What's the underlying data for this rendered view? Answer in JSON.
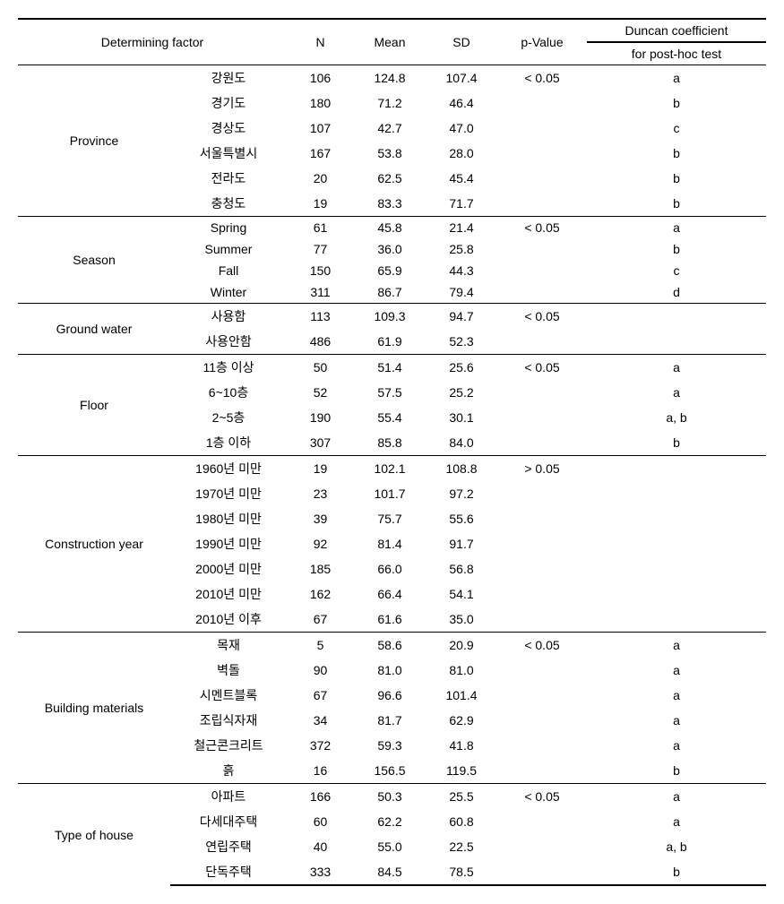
{
  "table": {
    "headers": {
      "factor": "Determining factor",
      "n": "N",
      "mean": "Mean",
      "sd": "SD",
      "pvalue": "p-Value",
      "duncan_l1": "Duncan coefficient",
      "duncan_l2": "for post-hoc test"
    },
    "sections": [
      {
        "label": "Province",
        "pvalue": "< 0.05",
        "rows": [
          {
            "cat": "강원도",
            "n": "106",
            "mean": "124.8",
            "sd": "107.4",
            "dun": "a"
          },
          {
            "cat": "경기도",
            "n": "180",
            "mean": "71.2",
            "sd": "46.4",
            "dun": "b"
          },
          {
            "cat": "경상도",
            "n": "107",
            "mean": "42.7",
            "sd": "47.0",
            "dun": "c"
          },
          {
            "cat": "서울특별시",
            "n": "167",
            "mean": "53.8",
            "sd": "28.0",
            "dun": "b"
          },
          {
            "cat": "전라도",
            "n": "20",
            "mean": "62.5",
            "sd": "45.4",
            "dun": "b"
          },
          {
            "cat": "충청도",
            "n": "19",
            "mean": "83.3",
            "sd": "71.7",
            "dun": "b"
          }
        ]
      },
      {
        "label": "Season",
        "pvalue": "< 0.05",
        "rows": [
          {
            "cat": "Spring",
            "n": "61",
            "mean": "45.8",
            "sd": "21.4",
            "dun": "a"
          },
          {
            "cat": "Summer",
            "n": "77",
            "mean": "36.0",
            "sd": "25.8",
            "dun": "b"
          },
          {
            "cat": "Fall",
            "n": "150",
            "mean": "65.9",
            "sd": "44.3",
            "dun": "c"
          },
          {
            "cat": "Winter",
            "n": "311",
            "mean": "86.7",
            "sd": "79.4",
            "dun": "d"
          }
        ]
      },
      {
        "label": "Ground water",
        "pvalue": "< 0.05",
        "rows": [
          {
            "cat": "사용함",
            "n": "113",
            "mean": "109.3",
            "sd": "94.7",
            "dun": ""
          },
          {
            "cat": "사용안함",
            "n": "486",
            "mean": "61.9",
            "sd": "52.3",
            "dun": ""
          }
        ]
      },
      {
        "label": "Floor",
        "pvalue": "< 0.05",
        "rows": [
          {
            "cat": "11층 이상",
            "n": "50",
            "mean": "51.4",
            "sd": "25.6",
            "dun": "a"
          },
          {
            "cat": "6~10층",
            "n": "52",
            "mean": "57.5",
            "sd": "25.2",
            "dun": "a"
          },
          {
            "cat": "2~5층",
            "n": "190",
            "mean": "55.4",
            "sd": "30.1",
            "dun": "a, b"
          },
          {
            "cat": "1층 이하",
            "n": "307",
            "mean": "85.8",
            "sd": "84.0",
            "dun": "b"
          }
        ]
      },
      {
        "label": "Construction year",
        "pvalue": "> 0.05",
        "rows": [
          {
            "cat": "1960년 미만",
            "n": "19",
            "mean": "102.1",
            "sd": "108.8",
            "dun": ""
          },
          {
            "cat": "1970년 미만",
            "n": "23",
            "mean": "101.7",
            "sd": "97.2",
            "dun": ""
          },
          {
            "cat": "1980년 미만",
            "n": "39",
            "mean": "75.7",
            "sd": "55.6",
            "dun": ""
          },
          {
            "cat": "1990년 미만",
            "n": "92",
            "mean": "81.4",
            "sd": "91.7",
            "dun": ""
          },
          {
            "cat": "2000년 미만",
            "n": "185",
            "mean": "66.0",
            "sd": "56.8",
            "dun": ""
          },
          {
            "cat": "2010년 미만",
            "n": "162",
            "mean": "66.4",
            "sd": "54.1",
            "dun": ""
          },
          {
            "cat": "2010년 이후",
            "n": "67",
            "mean": "61.6",
            "sd": "35.0",
            "dun": ""
          }
        ]
      },
      {
        "label": "Building materials",
        "pvalue": "< 0.05",
        "rows": [
          {
            "cat": "목재",
            "n": "5",
            "mean": "58.6",
            "sd": "20.9",
            "dun": "a"
          },
          {
            "cat": "벽돌",
            "n": "90",
            "mean": "81.0",
            "sd": "81.0",
            "dun": "a"
          },
          {
            "cat": "시멘트블록",
            "n": "67",
            "mean": "96.6",
            "sd": "101.4",
            "dun": "a"
          },
          {
            "cat": "조립식자재",
            "n": "34",
            "mean": "81.7",
            "sd": "62.9",
            "dun": "a"
          },
          {
            "cat": "철근콘크리트",
            "n": "372",
            "mean": "59.3",
            "sd": "41.8",
            "dun": "a"
          },
          {
            "cat": "흙",
            "n": "16",
            "mean": "156.5",
            "sd": "119.5",
            "dun": "b"
          }
        ]
      },
      {
        "label": "Type of house",
        "pvalue": "< 0.05",
        "rows": [
          {
            "cat": "아파트",
            "n": "166",
            "mean": "50.3",
            "sd": "25.5",
            "dun": "a"
          },
          {
            "cat": "다세대주택",
            "n": "60",
            "mean": "62.2",
            "sd": "60.8",
            "dun": "a"
          },
          {
            "cat": "연립주택",
            "n": "40",
            "mean": "55.0",
            "sd": "22.5",
            "dun": "a, b"
          },
          {
            "cat": "단독주택",
            "n": "333",
            "mean": "84.5",
            "sd": "78.5",
            "dun": "b"
          }
        ]
      }
    ]
  }
}
